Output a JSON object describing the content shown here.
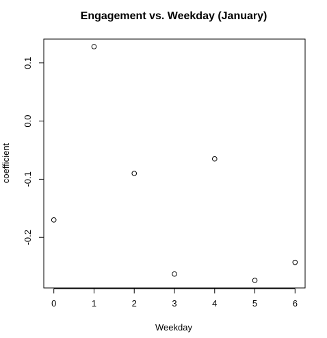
{
  "chart_data": {
    "type": "scatter",
    "title": "Engagement vs. Weekday (January)",
    "xlabel": "Weekday",
    "ylabel": "coefficient",
    "x": [
      0,
      1,
      2,
      3,
      4,
      5,
      6
    ],
    "y": [
      -0.17,
      0.128,
      -0.09,
      -0.263,
      -0.065,
      -0.274,
      -0.243
    ],
    "xlim": [
      -0.25,
      6.25
    ],
    "ylim": [
      -0.287,
      0.141
    ],
    "xticks": [
      0,
      1,
      2,
      3,
      4,
      5,
      6
    ],
    "xtick_labels": [
      "0",
      "1",
      "2",
      "3",
      "4",
      "5",
      "6"
    ],
    "yticks": [
      -0.2,
      -0.1,
      0.0,
      0.1
    ],
    "ytick_labels": [
      "-0.2",
      "-0.1",
      "0.0",
      "0.1"
    ],
    "grid": false,
    "marker": "open-circle"
  }
}
